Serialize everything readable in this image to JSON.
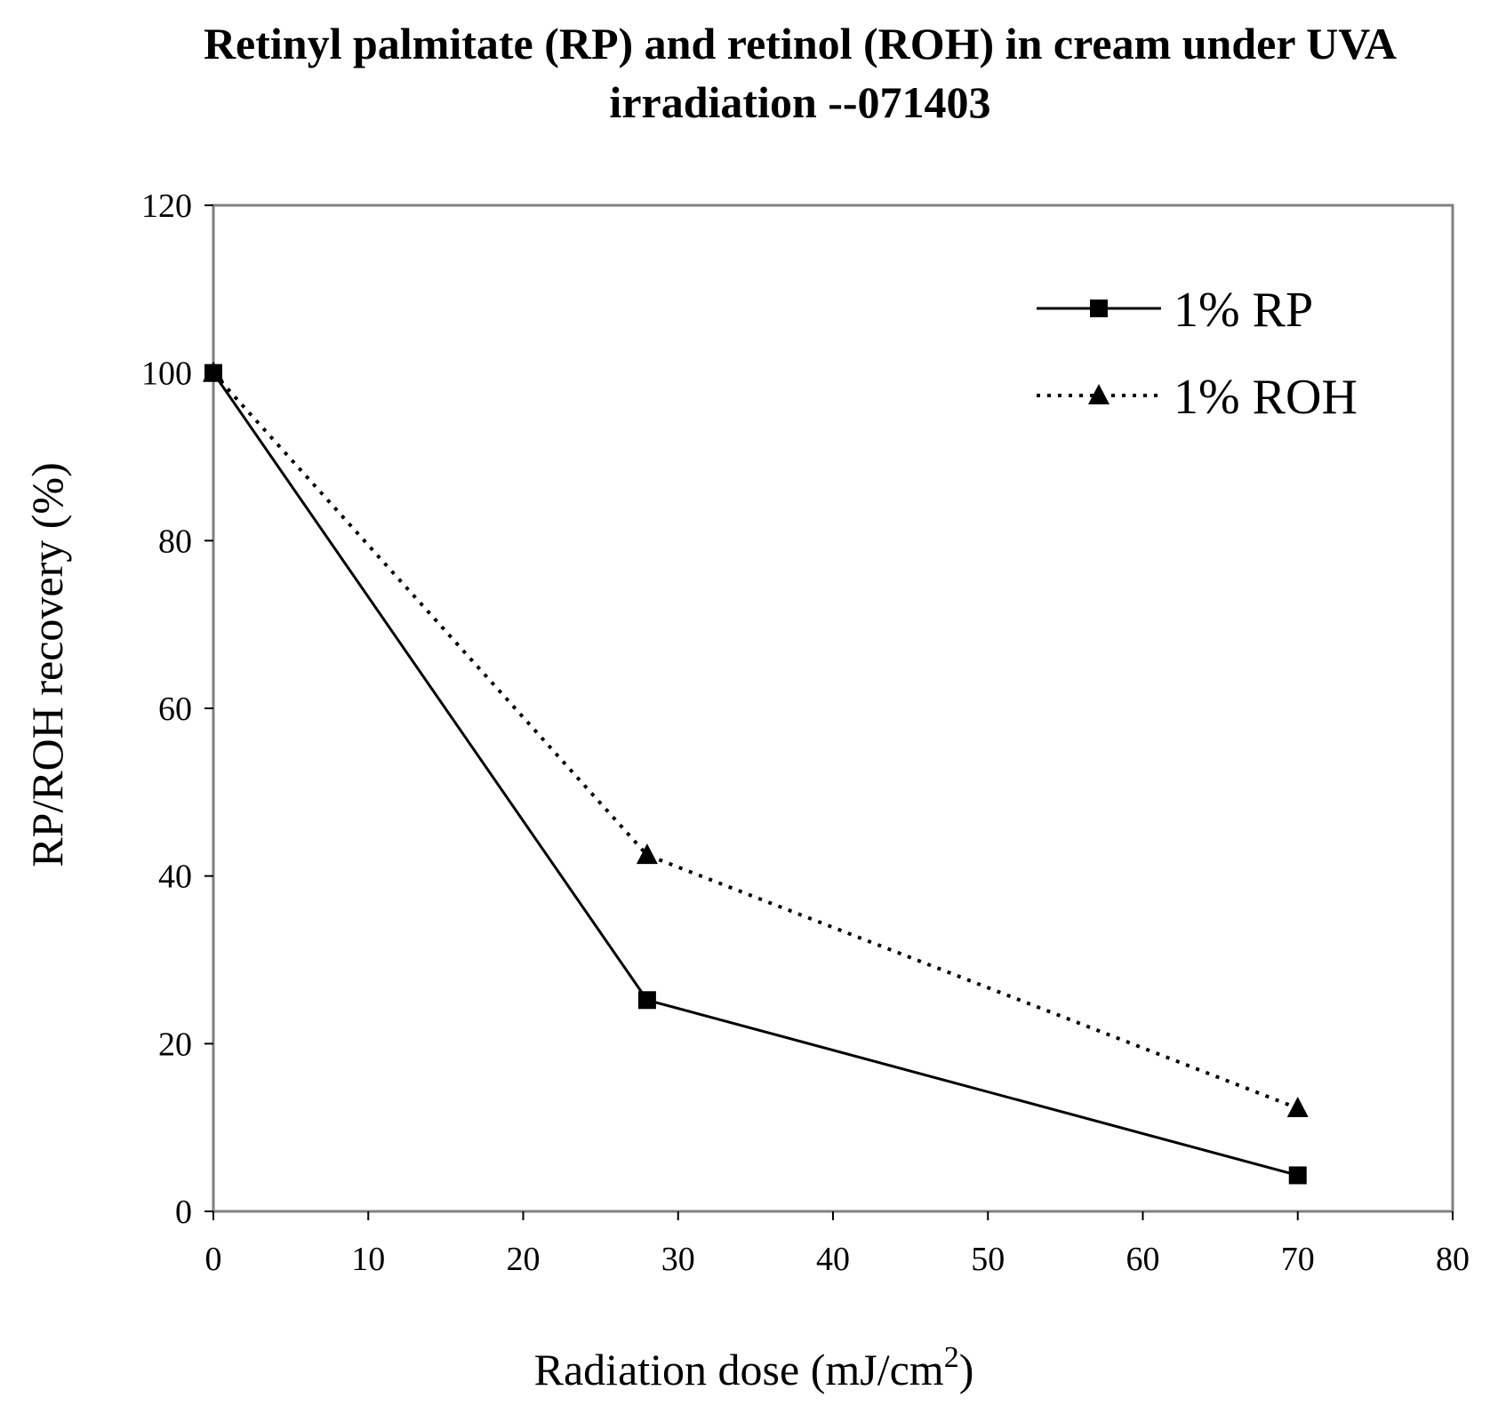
{
  "chart_data": {
    "type": "line",
    "title_line1": "Retinyl palmitate (RP) and  retinol (ROH)  in cream under UVA",
    "title_line2": "irradiation --071403",
    "xlabel_main": "Radiation dose (mJ/cm",
    "xlabel_sup": "2",
    "xlabel_close": ")",
    "ylabel": "RP/ROH recovery (%)",
    "xlim": [
      0,
      80
    ],
    "ylim": [
      0,
      120
    ],
    "xticks": [
      "0",
      "10",
      "20",
      "30",
      "40",
      "50",
      "60",
      "70",
      "80"
    ],
    "yticks": [
      "0",
      "20",
      "40",
      "60",
      "80",
      "100",
      "120"
    ],
    "grid": false,
    "legend_position": "top-right",
    "series": [
      {
        "name": "1% RP",
        "style": "solid",
        "marker": "square",
        "color": "#000000",
        "x": [
          0,
          28,
          70
        ],
        "y": [
          100,
          25.2,
          4.3
        ]
      },
      {
        "name": "1% ROH",
        "style": "dotted",
        "marker": "triangle",
        "color": "#000000",
        "x": [
          0,
          28,
          70
        ],
        "y": [
          100,
          42.5,
          12.3
        ]
      }
    ]
  }
}
